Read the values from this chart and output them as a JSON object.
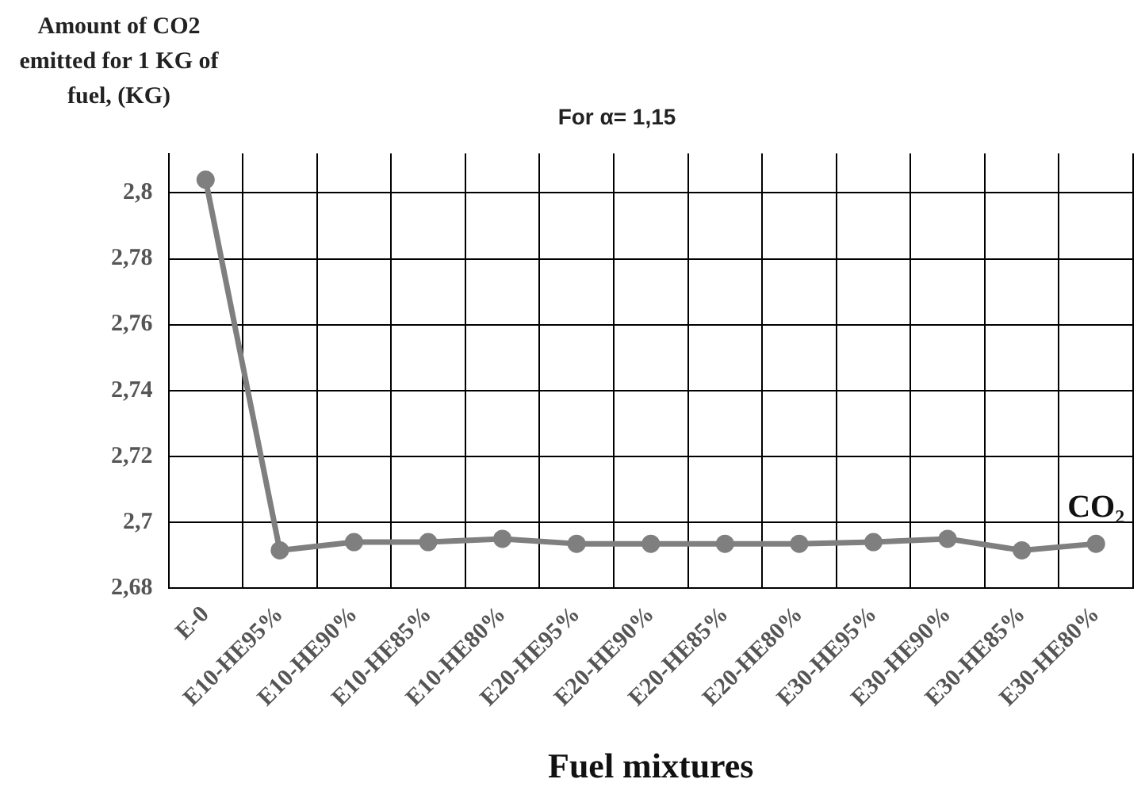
{
  "chart_data": {
    "type": "line",
    "title": "For α= 1,15",
    "ylabel": "Amount of CO2 emitted for 1 KG of fuel, (KG)",
    "xlabel": "Fuel mixtures",
    "categories": [
      "E-0",
      "E10-HE95%",
      "E10-HE90%",
      "E10-HE85%",
      "E10-HE80%",
      "E20-HE95%",
      "E20-HE90%",
      "E20-HE85%",
      "E20-HE80%",
      "E30-HE95%",
      "E30-HE90%",
      "E30-HE85%",
      "E30-HE80%"
    ],
    "series": [
      {
        "name": "CO₂",
        "color": "#7f7f7f",
        "values": [
          2.804,
          2.6915,
          2.694,
          2.694,
          2.695,
          2.6935,
          2.6935,
          2.6935,
          2.6935,
          2.694,
          2.695,
          2.6915,
          2.6935
        ]
      }
    ],
    "ylim": [
      2.68,
      2.812
    ],
    "yticks": [
      {
        "value": 2.68,
        "label": "2,68"
      },
      {
        "value": 2.7,
        "label": "2,7"
      },
      {
        "value": 2.72,
        "label": "2,72"
      },
      {
        "value": 2.74,
        "label": "2,74"
      },
      {
        "value": 2.76,
        "label": "2,76"
      },
      {
        "value": 2.78,
        "label": "2,78"
      },
      {
        "value": 2.8,
        "label": "2,8"
      }
    ],
    "grid": true,
    "legend": false,
    "marker": "circle",
    "line_style": "solid"
  }
}
